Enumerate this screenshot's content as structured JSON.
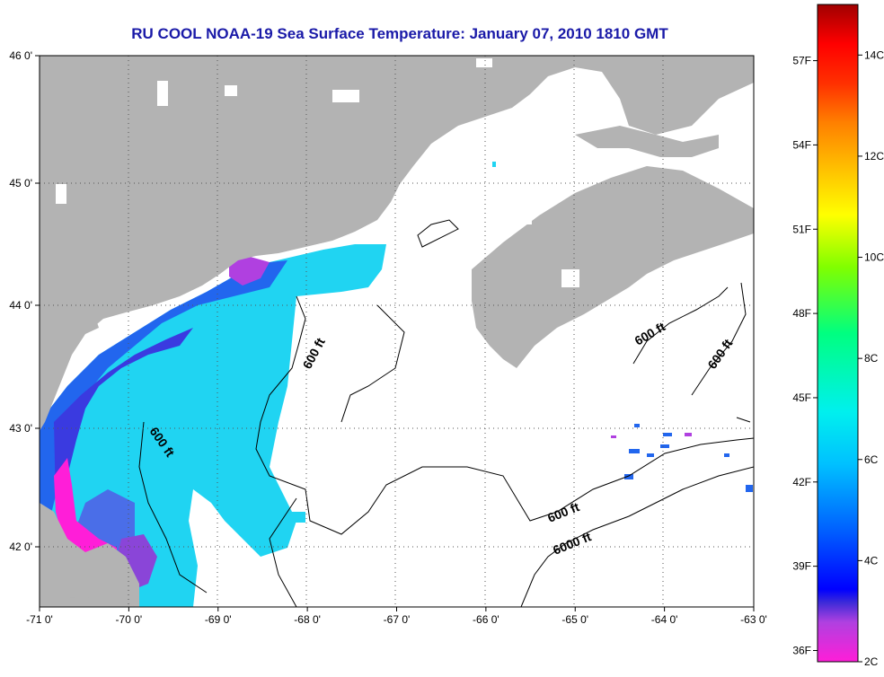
{
  "title": "RU COOL  NOAA-19  Sea Surface Temperature:  January 07, 2010 1810 GMT",
  "map": {
    "lon_range": [
      -71,
      -63
    ],
    "lat_range": [
      41.5,
      46
    ],
    "lon_ticks": [
      "-71 0'",
      "-70 0'",
      "-69 0'",
      "-68 0'",
      "-67 0'",
      "-66 0'",
      "-65 0'",
      "-64 0'",
      "-63 0'"
    ],
    "lat_ticks": [
      "46 0'",
      "45 0'",
      "44 0'",
      "43 0'",
      "42 0'"
    ],
    "land_color": "#b3b3b3",
    "no_data_color": "#ffffff",
    "contour_labels": [
      "600 ft",
      "600 ft",
      "600 ft",
      "600 ft",
      "600 ft",
      "6000 ft"
    ]
  },
  "colorbar": {
    "min_c": 2,
    "max_c": 15,
    "celsius_labels": [
      "14C",
      "12C",
      "10C",
      "8C",
      "6C",
      "4C",
      "2C"
    ],
    "fahrenheit_labels": [
      "57F",
      "54F",
      "51F",
      "48F",
      "45F",
      "42F",
      "39F",
      "36F"
    ]
  }
}
